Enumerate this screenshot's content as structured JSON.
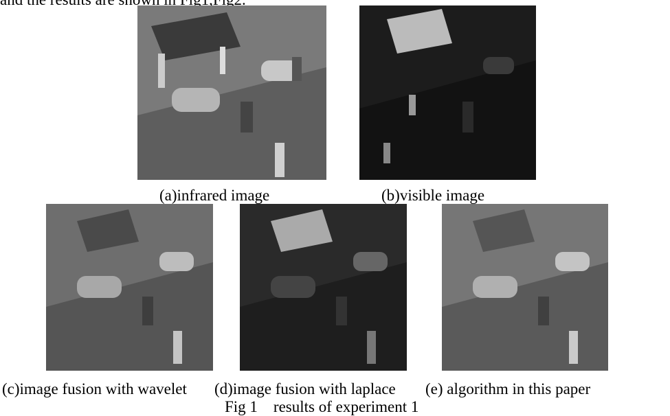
{
  "body_text": "and the results are shown in Fig1,Fig2.",
  "figure": {
    "panels": [
      {
        "caption": "(a)infrared image"
      },
      {
        "caption": "(b)visible image"
      },
      {
        "caption": "(c)image fusion with wavelet"
      },
      {
        "caption": "(d)image fusion with laplace"
      },
      {
        "caption": "(e) algorithm in this paper"
      }
    ],
    "caption": "Fig 1    results of experiment 1"
  }
}
